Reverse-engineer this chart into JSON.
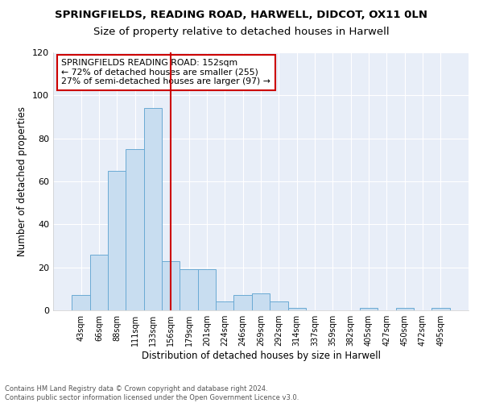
{
  "title": "SPRINGFIELDS, READING ROAD, HARWELL, DIDCOT, OX11 0LN",
  "subtitle": "Size of property relative to detached houses in Harwell",
  "xlabel": "Distribution of detached houses by size in Harwell",
  "ylabel": "Number of detached properties",
  "bin_labels": [
    "43sqm",
    "66sqm",
    "88sqm",
    "111sqm",
    "133sqm",
    "156sqm",
    "179sqm",
    "201sqm",
    "224sqm",
    "246sqm",
    "269sqm",
    "292sqm",
    "314sqm",
    "337sqm",
    "359sqm",
    "382sqm",
    "405sqm",
    "427sqm",
    "450sqm",
    "472sqm",
    "495sqm"
  ],
  "bar_heights": [
    7,
    26,
    65,
    75,
    94,
    23,
    19,
    19,
    4,
    7,
    8,
    4,
    1,
    0,
    0,
    0,
    1,
    0,
    1,
    0,
    1
  ],
  "bar_color": "#c8ddf0",
  "bar_edge_color": "#6aaad4",
  "vline_x": 5,
  "vline_color": "#cc0000",
  "ylim": [
    0,
    120
  ],
  "yticks": [
    0,
    20,
    40,
    60,
    80,
    100,
    120
  ],
  "annotation_text": "SPRINGFIELDS READING ROAD: 152sqm\n← 72% of detached houses are smaller (255)\n27% of semi-detached houses are larger (97) →",
  "annotation_box_color": "#cc0000",
  "background_color": "#ffffff",
  "plot_bg_color": "#e8eef8",
  "grid_color": "#ffffff",
  "footer_text": "Contains HM Land Registry data © Crown copyright and database right 2024.\nContains public sector information licensed under the Open Government Licence v3.0.",
  "title_fontsize": 9.5,
  "subtitle_fontsize": 9.5,
  "tick_fontsize": 7,
  "ylabel_fontsize": 8.5,
  "xlabel_fontsize": 8.5
}
